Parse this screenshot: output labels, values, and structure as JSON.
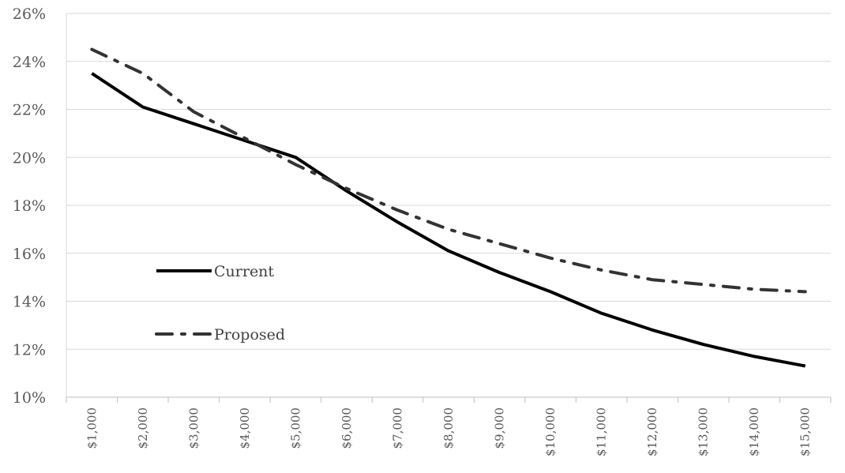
{
  "chart_data": {
    "type": "line",
    "categories": [
      "$1,000",
      "$2,000",
      "$3,000",
      "$4,000",
      "$5,000",
      "$6,000",
      "$7,000",
      "$8,000",
      "$9,000",
      "$10,000",
      "$11,000",
      "$12,000",
      "$13,000",
      "$14,000",
      "$15,000"
    ],
    "series": [
      {
        "name": "Current",
        "style": "solid",
        "color": "#000000",
        "values": [
          23.5,
          22.1,
          21.4,
          20.7,
          20.0,
          18.6,
          17.3,
          16.1,
          15.2,
          14.4,
          13.5,
          12.8,
          12.2,
          11.7,
          11.3
        ]
      },
      {
        "name": "Proposed",
        "style": "dash-dot",
        "color": "#333333",
        "values": [
          24.5,
          23.5,
          21.9,
          20.8,
          19.7,
          18.7,
          17.8,
          17.0,
          16.4,
          15.8,
          15.3,
          14.9,
          14.7,
          14.5,
          14.4
        ]
      }
    ],
    "yticks": [
      "10%",
      "12%",
      "14%",
      "16%",
      "18%",
      "20%",
      "22%",
      "24%",
      "26%"
    ],
    "ylim": [
      10,
      26
    ],
    "grid": true,
    "legend_position": "inside-left"
  }
}
